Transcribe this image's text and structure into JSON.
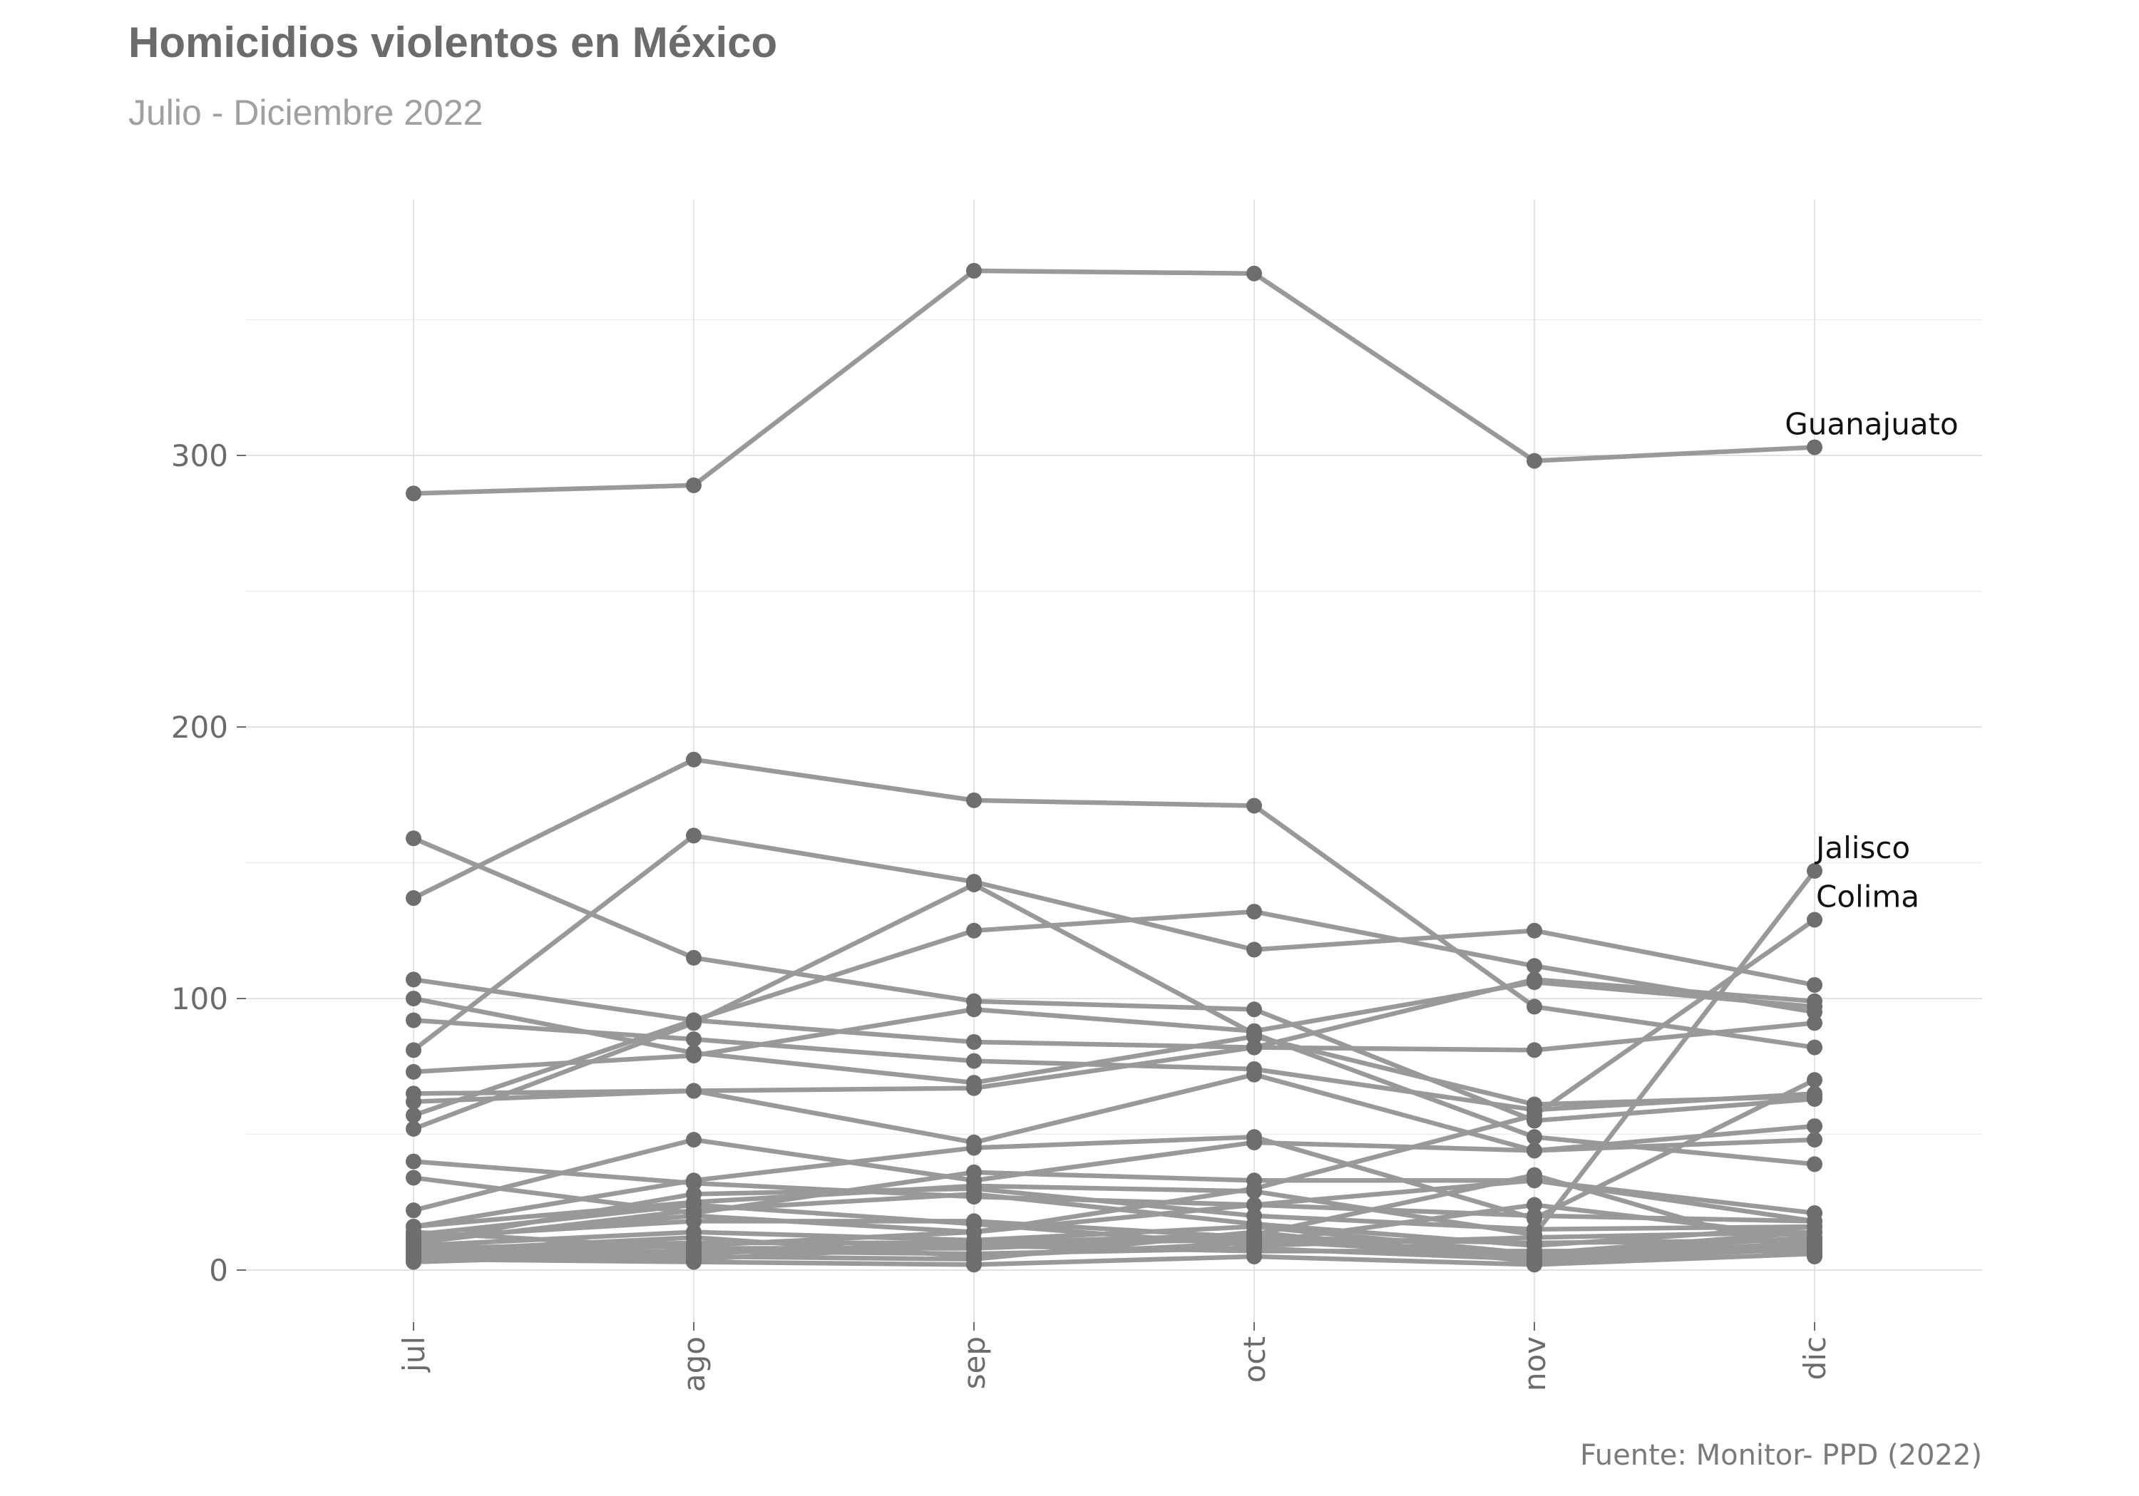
{
  "chart_data": {
    "type": "line",
    "title": "Homicidios violentos en México",
    "subtitle": "Julio - Diciembre 2022",
    "caption": "Fuente: Monitor- PPD (2022)",
    "xlabel": "",
    "ylabel": "",
    "categories": [
      "jul",
      "ago",
      "sep",
      "oct",
      "nov",
      "dic"
    ],
    "yticks": [
      0,
      100,
      200,
      300
    ],
    "ytick_labels": [
      "0",
      "100",
      "200",
      "300"
    ],
    "ylim": [
      -15,
      395
    ],
    "grid": true,
    "legend": "none",
    "colors": {
      "line": "#999999",
      "point": "#6e6e6e",
      "grid": "#d9d9d9"
    },
    "annotations": [
      {
        "text": "Guanajuato",
        "category": "dic",
        "value": 303
      },
      {
        "text": "Jalisco",
        "category": "dic",
        "value": 147
      },
      {
        "text": "Colima",
        "category": "dic",
        "value": 129
      }
    ],
    "series": [
      {
        "name": "Guanajuato",
        "values": [
          286,
          289,
          368,
          367,
          298,
          303
        ]
      },
      {
        "name": "Jalisco",
        "values": [
          16,
          25,
          31,
          29,
          13,
          147
        ]
      },
      {
        "name": "Colima",
        "values": [
          6,
          9,
          14,
          30,
          57,
          129
        ]
      },
      {
        "values": [
          137,
          188,
          173,
          171,
          97,
          82
        ]
      },
      {
        "values": [
          159,
          115,
          99,
          96,
          55,
          63
        ]
      },
      {
        "values": [
          52,
          91,
          142,
          87,
          49,
          39
        ]
      },
      {
        "values": [
          81,
          160,
          143,
          118,
          125,
          105
        ]
      },
      {
        "values": [
          107,
          92,
          84,
          82,
          107,
          99
        ]
      },
      {
        "values": [
          100,
          80,
          69,
          86,
          61,
          64
        ]
      },
      {
        "values": [
          92,
          85,
          77,
          74,
          59,
          65
        ]
      },
      {
        "values": [
          73,
          79,
          96,
          88,
          106,
          97
        ]
      },
      {
        "values": [
          65,
          66,
          67,
          82,
          81,
          91
        ]
      },
      {
        "values": [
          57,
          92,
          125,
          132,
          112,
          95
        ]
      },
      {
        "values": [
          62,
          66,
          47,
          72,
          44,
          53
        ]
      },
      {
        "values": [
          22,
          48,
          33,
          47,
          44,
          48
        ]
      },
      {
        "values": [
          34,
          21,
          36,
          33,
          33,
          21
        ]
      },
      {
        "values": [
          40,
          32,
          27,
          24,
          33,
          18
        ]
      },
      {
        "values": [
          16,
          33,
          45,
          49,
          19,
          70
        ]
      },
      {
        "values": [
          13,
          24,
          17,
          9,
          12,
          14
        ]
      },
      {
        "values": [
          12,
          18,
          18,
          12,
          6,
          14
        ]
      },
      {
        "values": [
          10,
          22,
          28,
          17,
          9,
          16
        ]
      },
      {
        "values": [
          9,
          14,
          11,
          16,
          6,
          12
        ]
      },
      {
        "values": [
          8,
          10,
          10,
          11,
          5,
          10
        ]
      },
      {
        "values": [
          7,
          12,
          5,
          10,
          24,
          12
        ]
      },
      {
        "values": [
          6,
          7,
          6,
          8,
          4,
          9
        ]
      },
      {
        "values": [
          5,
          5,
          4,
          14,
          3,
          8
        ]
      },
      {
        "values": [
          4,
          3,
          2,
          5,
          2,
          6
        ]
      },
      {
        "values": [
          3,
          6,
          10,
          13,
          35,
          5
        ]
      },
      {
        "values": [
          11,
          20,
          14,
          24,
          20,
          18
        ]
      },
      {
        "values": [
          14,
          8,
          8,
          12,
          10,
          11
        ]
      },
      {
        "values": [
          5,
          4,
          9,
          7,
          7,
          7
        ]
      },
      {
        "values": [
          10,
          28,
          30,
          20,
          15,
          16
        ]
      }
    ]
  }
}
